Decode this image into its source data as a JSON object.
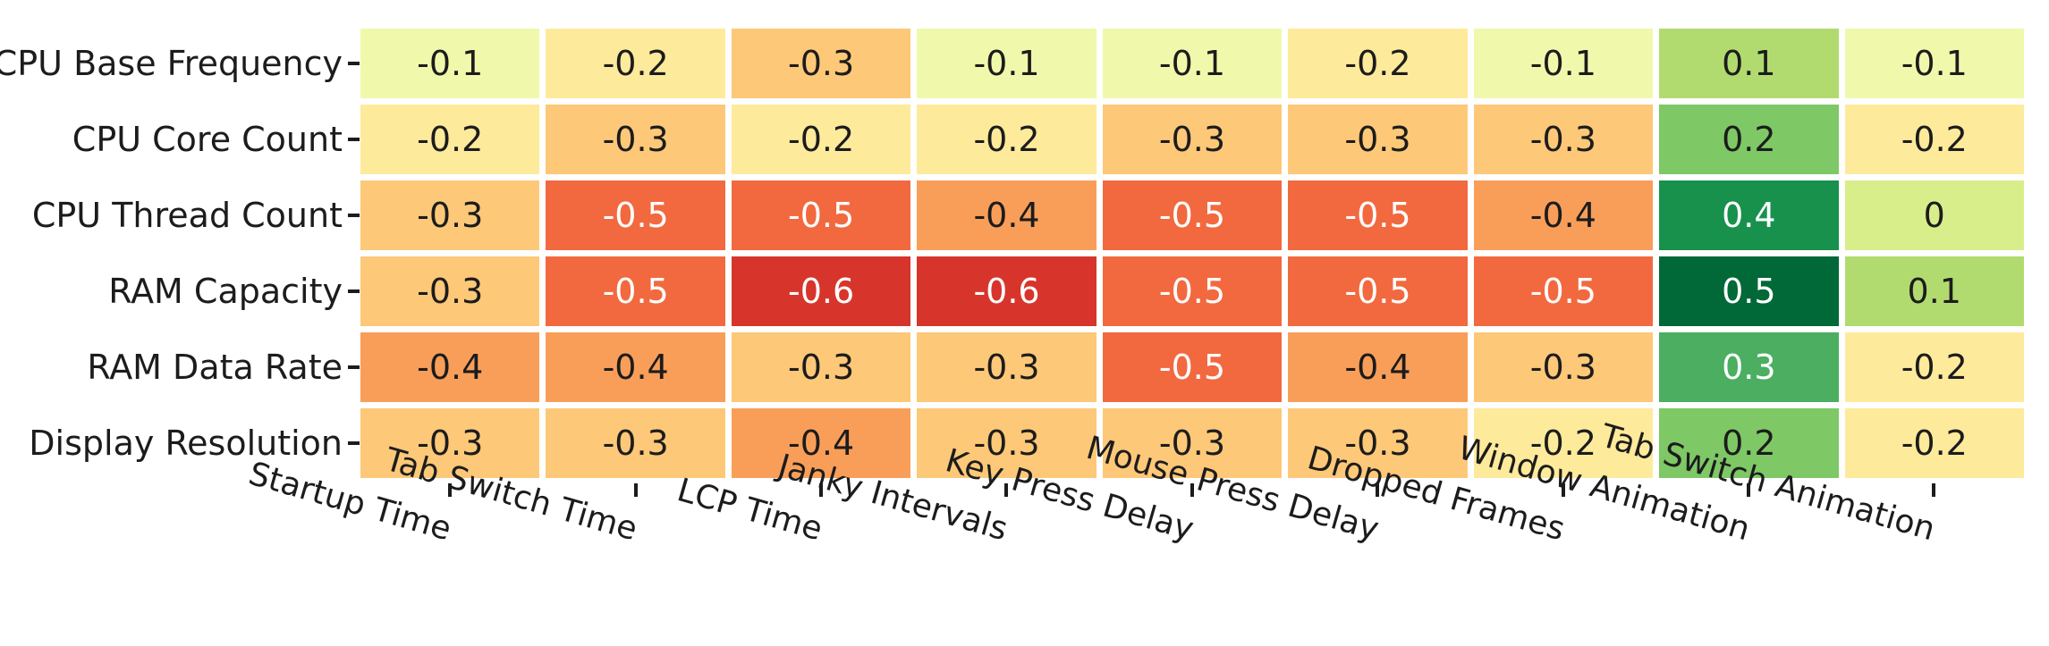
{
  "chart_data": {
    "type": "heatmap",
    "rows": [
      "CPU Base Frequency",
      "CPU Core Count",
      "CPU Thread Count",
      "RAM Capacity",
      "RAM Data Rate",
      "Display Resolution"
    ],
    "columns": [
      "Startup Time",
      "Tab Switch Time",
      "LCP Time",
      "Janky Intervals",
      "Key Press Delay",
      "Mouse Press Delay",
      "Dropped Frames",
      "Window Animation",
      "Tab Switch Animation"
    ],
    "values": [
      [
        -0.1,
        -0.2,
        -0.3,
        -0.1,
        -0.1,
        -0.2,
        -0.1,
        0.1,
        -0.1
      ],
      [
        -0.2,
        -0.3,
        -0.2,
        -0.2,
        -0.3,
        -0.3,
        -0.3,
        0.2,
        -0.2
      ],
      [
        -0.3,
        -0.5,
        -0.5,
        -0.4,
        -0.5,
        -0.5,
        -0.4,
        0.4,
        0
      ],
      [
        -0.3,
        -0.5,
        -0.6,
        -0.6,
        -0.5,
        -0.5,
        -0.5,
        0.5,
        0.1
      ],
      [
        -0.4,
        -0.4,
        -0.3,
        -0.3,
        -0.5,
        -0.4,
        -0.3,
        0.3,
        -0.2
      ],
      [
        -0.3,
        -0.3,
        -0.4,
        -0.3,
        -0.3,
        -0.3,
        -0.2,
        0.2,
        -0.2
      ]
    ],
    "title": "",
    "xlabel": "",
    "ylabel": "",
    "value_range": [
      -0.6,
      0.5
    ],
    "grid_line_color": "#ffffff",
    "legend": "none",
    "colormap_name": "RdYlGn",
    "colormap": {
      "-0.6": "#d7352b",
      "-0.5": "#f2693f",
      "-0.4": "#f99e59",
      "-0.3": "#fdc878",
      "-0.2": "#feea9b",
      "-0.1": "#f0f9ab",
      "0": "#d8ee8a",
      "0.1": "#b2db6f",
      "0.2": "#7ec866",
      "0.3": "#4bae60",
      "0.4": "#17914c",
      "0.5": "#016838"
    },
    "annotation_text_dark": "#1c1c1c",
    "annotation_text_light": "#ffffff",
    "white_text_when": {
      "value_at_most": -0.5,
      "value_at_least": 0.3
    }
  }
}
